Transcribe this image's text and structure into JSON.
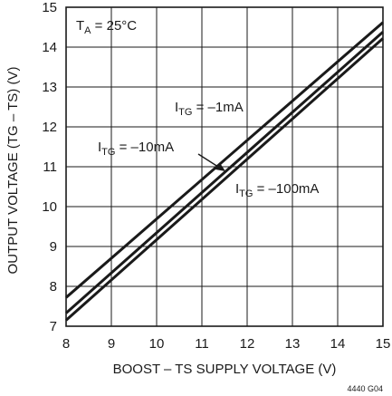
{
  "chart_data": {
    "type": "line",
    "xlabel": "BOOST – TS SUPPLY VOLTAGE (V)",
    "ylabel": "OUTPUT VOLTAGE (TG – TS) (V)",
    "xlim": [
      8,
      15
    ],
    "ylim": [
      7,
      15
    ],
    "x_ticks": [
      "8",
      "9",
      "10",
      "11",
      "12",
      "13",
      "14",
      "15"
    ],
    "y_ticks": [
      "7",
      "8",
      "9",
      "10",
      "11",
      "12",
      "13",
      "14",
      "15"
    ],
    "grid": true,
    "legend": "none",
    "line_color": "#1a1a1a",
    "condition": {
      "main": "T",
      "sub": "A",
      "rest": " = 25°C"
    },
    "figure_id": "4440 G04",
    "series": [
      {
        "main": "I",
        "sub": "TG",
        "rest": " = –1mA",
        "x": [
          8,
          15
        ],
        "y": [
          7.72,
          14.62
        ]
      },
      {
        "main": "I",
        "sub": "TG",
        "rest": " = –10mA",
        "x": [
          8,
          15
        ],
        "y": [
          7.33,
          14.38
        ]
      },
      {
        "main": "I",
        "sub": "TG",
        "rest": " = –100mA",
        "x": [
          8,
          15
        ],
        "y": [
          7.15,
          14.22
        ]
      }
    ]
  }
}
